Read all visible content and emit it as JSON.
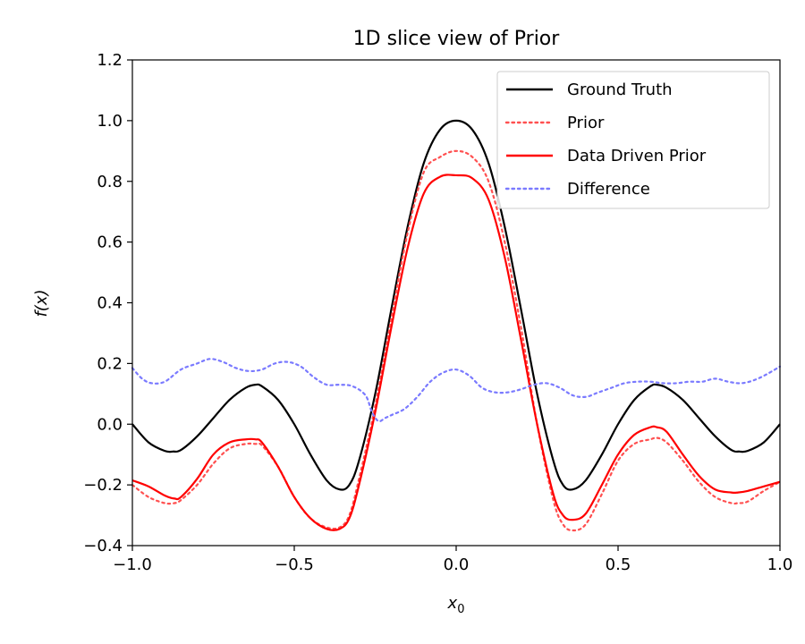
{
  "chart_data": {
    "type": "line",
    "title": "1D slice view of Prior",
    "xlabel": "x",
    "xlabel_sub": "0",
    "ylabel": "f(x)",
    "xlim": [
      -1.0,
      1.0
    ],
    "ylim": [
      -0.4,
      1.2
    ],
    "xticks": [
      -1.0,
      -0.5,
      0.0,
      0.5,
      1.0
    ],
    "xtick_labels": [
      "−1.0",
      "−0.5",
      "0.0",
      "0.5",
      "1.0"
    ],
    "yticks": [
      -0.4,
      -0.2,
      0.0,
      0.2,
      0.4,
      0.6,
      0.8,
      1.0,
      1.2
    ],
    "ytick_labels": [
      "−0.4",
      "−0.2",
      "0.0",
      "0.2",
      "0.4",
      "0.6",
      "0.8",
      "1.0",
      "1.2"
    ],
    "grid": false,
    "legend_position": "top-right",
    "series": [
      {
        "name": "Ground Truth",
        "color": "#000000",
        "dash": "solid",
        "x": [
          -1.0,
          -0.95,
          -0.9,
          -0.875,
          -0.85,
          -0.8,
          -0.75,
          -0.7,
          -0.65,
          -0.62,
          -0.6,
          -0.55,
          -0.5,
          -0.45,
          -0.4,
          -0.36,
          -0.33,
          -0.3,
          -0.25,
          -0.2,
          -0.15,
          -0.1,
          -0.05,
          0.0,
          0.05,
          0.1,
          0.15,
          0.2,
          0.25,
          0.3,
          0.33,
          0.36,
          0.4,
          0.45,
          0.5,
          0.55,
          0.6,
          0.62,
          0.65,
          0.7,
          0.75,
          0.8,
          0.85,
          0.875,
          0.9,
          0.95,
          1.0
        ],
        "y": [
          0.0,
          -0.06,
          -0.088,
          -0.09,
          -0.085,
          -0.04,
          0.02,
          0.08,
          0.12,
          0.13,
          0.125,
          0.08,
          0.0,
          -0.1,
          -0.185,
          -0.215,
          -0.2,
          -0.12,
          0.1,
          0.38,
          0.65,
          0.86,
          0.97,
          1.0,
          0.97,
          0.86,
          0.65,
          0.38,
          0.1,
          -0.12,
          -0.2,
          -0.215,
          -0.185,
          -0.1,
          0.0,
          0.08,
          0.125,
          0.13,
          0.12,
          0.08,
          0.02,
          -0.04,
          -0.085,
          -0.09,
          -0.088,
          -0.06,
          0.0
        ]
      },
      {
        "name": "Prior",
        "color": "#ff5050",
        "dash": "dotted",
        "x": [
          -1.0,
          -0.95,
          -0.9,
          -0.87,
          -0.85,
          -0.8,
          -0.75,
          -0.7,
          -0.65,
          -0.62,
          -0.6,
          -0.55,
          -0.5,
          -0.45,
          -0.4,
          -0.36,
          -0.33,
          -0.3,
          -0.25,
          -0.2,
          -0.15,
          -0.1,
          -0.05,
          0.0,
          0.05,
          0.1,
          0.15,
          0.2,
          0.25,
          0.3,
          0.33,
          0.36,
          0.4,
          0.45,
          0.5,
          0.55,
          0.6,
          0.62,
          0.65,
          0.7,
          0.75,
          0.8,
          0.85,
          0.87,
          0.9,
          0.95,
          1.0
        ],
        "y": [
          -0.2,
          -0.24,
          -0.26,
          -0.26,
          -0.25,
          -0.2,
          -0.13,
          -0.08,
          -0.065,
          -0.065,
          -0.07,
          -0.14,
          -0.24,
          -0.31,
          -0.34,
          -0.34,
          -0.3,
          -0.18,
          0.06,
          0.35,
          0.63,
          0.83,
          0.88,
          0.9,
          0.88,
          0.8,
          0.6,
          0.32,
          0.0,
          -0.25,
          -0.33,
          -0.35,
          -0.33,
          -0.23,
          -0.12,
          -0.065,
          -0.05,
          -0.045,
          -0.06,
          -0.12,
          -0.19,
          -0.24,
          -0.26,
          -0.26,
          -0.255,
          -0.22,
          -0.19
        ]
      },
      {
        "name": "Data Driven Prior",
        "color": "#ff0000",
        "dash": "solid",
        "x": [
          -1.0,
          -0.95,
          -0.9,
          -0.87,
          -0.85,
          -0.8,
          -0.75,
          -0.7,
          -0.65,
          -0.62,
          -0.6,
          -0.55,
          -0.5,
          -0.45,
          -0.4,
          -0.36,
          -0.33,
          -0.3,
          -0.25,
          -0.2,
          -0.15,
          -0.1,
          -0.05,
          0.0,
          0.05,
          0.1,
          0.15,
          0.2,
          0.25,
          0.3,
          0.33,
          0.36,
          0.4,
          0.45,
          0.5,
          0.55,
          0.6,
          0.62,
          0.65,
          0.7,
          0.75,
          0.8,
          0.85,
          0.87,
          0.9,
          0.95,
          1.0
        ],
        "y": [
          -0.185,
          -0.205,
          -0.235,
          -0.245,
          -0.24,
          -0.18,
          -0.1,
          -0.06,
          -0.05,
          -0.05,
          -0.06,
          -0.14,
          -0.24,
          -0.31,
          -0.345,
          -0.345,
          -0.31,
          -0.2,
          0.04,
          0.32,
          0.58,
          0.76,
          0.815,
          0.82,
          0.81,
          0.74,
          0.55,
          0.28,
          0.0,
          -0.23,
          -0.3,
          -0.315,
          -0.295,
          -0.2,
          -0.1,
          -0.035,
          -0.01,
          -0.01,
          -0.025,
          -0.1,
          -0.17,
          -0.215,
          -0.225,
          -0.225,
          -0.22,
          -0.205,
          -0.19
        ]
      },
      {
        "name": "Difference",
        "color": "#7a7aff",
        "dash": "dotted",
        "x": [
          -1.0,
          -0.97,
          -0.94,
          -0.9,
          -0.85,
          -0.8,
          -0.76,
          -0.72,
          -0.68,
          -0.64,
          -0.6,
          -0.56,
          -0.52,
          -0.48,
          -0.44,
          -0.4,
          -0.36,
          -0.32,
          -0.28,
          -0.26,
          -0.24,
          -0.22,
          -0.2,
          -0.16,
          -0.12,
          -0.08,
          -0.04,
          0.0,
          0.04,
          0.08,
          0.12,
          0.16,
          0.2,
          0.24,
          0.28,
          0.32,
          0.36,
          0.4,
          0.44,
          0.48,
          0.52,
          0.56,
          0.6,
          0.64,
          0.68,
          0.72,
          0.76,
          0.8,
          0.84,
          0.88,
          0.92,
          0.96,
          1.0
        ],
        "y": [
          0.185,
          0.15,
          0.135,
          0.14,
          0.18,
          0.2,
          0.215,
          0.205,
          0.185,
          0.175,
          0.18,
          0.2,
          0.205,
          0.19,
          0.155,
          0.13,
          0.13,
          0.125,
          0.095,
          0.04,
          0.01,
          0.02,
          0.03,
          0.05,
          0.09,
          0.14,
          0.17,
          0.18,
          0.16,
          0.12,
          0.105,
          0.105,
          0.115,
          0.13,
          0.135,
          0.12,
          0.095,
          0.09,
          0.105,
          0.12,
          0.135,
          0.14,
          0.14,
          0.135,
          0.135,
          0.14,
          0.14,
          0.15,
          0.14,
          0.135,
          0.145,
          0.165,
          0.19
        ]
      }
    ]
  }
}
